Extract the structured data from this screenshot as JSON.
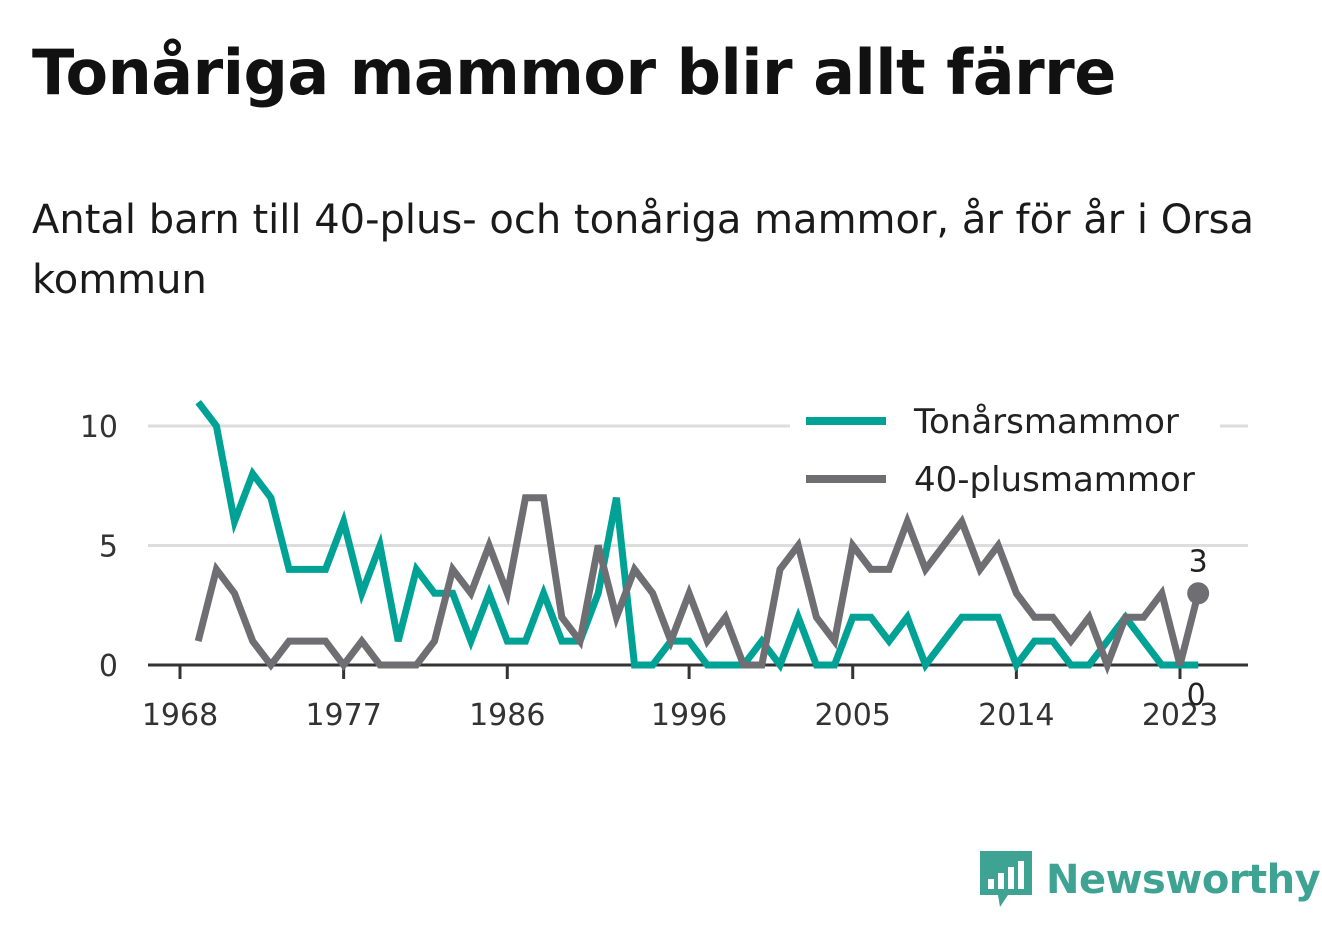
{
  "title": "Tonåriga mammor blir allt färre",
  "subtitle": "Antal barn till 40-plus- och tonåriga mammor, år för år i Orsa kommun",
  "logo": {
    "text": "Newsworthy",
    "icon": "newsworthy-logo-icon"
  },
  "colors": {
    "teen": "#00a295",
    "forty": "#6e6e73",
    "grid": "#dddddd",
    "axis": "#333333"
  },
  "chart_data": {
    "type": "line",
    "x_ticks": [
      1968,
      1977,
      1986,
      1996,
      2005,
      2014,
      2023
    ],
    "y_ticks": [
      0,
      5,
      10
    ],
    "ylim": [
      0,
      11
    ],
    "xlim": [
      1967,
      2027
    ],
    "grid": true,
    "legend": "top-right",
    "x": [
      1969,
      1970,
      1971,
      1972,
      1973,
      1974,
      1975,
      1976,
      1977,
      1978,
      1979,
      1980,
      1981,
      1982,
      1983,
      1984,
      1985,
      1986,
      1987,
      1988,
      1989,
      1990,
      1991,
      1992,
      1993,
      1994,
      1995,
      1996,
      1997,
      1998,
      1999,
      2000,
      2001,
      2002,
      2003,
      2004,
      2005,
      2006,
      2007,
      2008,
      2009,
      2010,
      2011,
      2012,
      2013,
      2014,
      2015,
      2016,
      2017,
      2018,
      2019,
      2020,
      2021,
      2022,
      2023,
      2024
    ],
    "series": [
      {
        "name": "Tonårsmammor",
        "key": "teen",
        "values": [
          11,
          10,
          6,
          8,
          7,
          4,
          4,
          4,
          6,
          3,
          5,
          1,
          4,
          3,
          3,
          1,
          3,
          1,
          1,
          3,
          1,
          1,
          3,
          7,
          0,
          0,
          1,
          1,
          0,
          0,
          0,
          1,
          0,
          2,
          0,
          0,
          2,
          2,
          1,
          2,
          0,
          1,
          2,
          2,
          2,
          0,
          1,
          1,
          0,
          0,
          1,
          2,
          1,
          0,
          0,
          0
        ],
        "end_value_label": "0"
      },
      {
        "name": "40-plusmammor",
        "key": "forty",
        "values": [
          1,
          4,
          3,
          1,
          0,
          1,
          1,
          1,
          0,
          1,
          0,
          0,
          0,
          1,
          4,
          3,
          5,
          3,
          7,
          7,
          2,
          1,
          5,
          2,
          4,
          3,
          1,
          3,
          1,
          2,
          0,
          0,
          4,
          5,
          2,
          1,
          5,
          4,
          4,
          6,
          4,
          5,
          6,
          4,
          5,
          3,
          2,
          2,
          1,
          2,
          0,
          2,
          2,
          3,
          0,
          3
        ],
        "end_value_label": "3"
      }
    ]
  }
}
